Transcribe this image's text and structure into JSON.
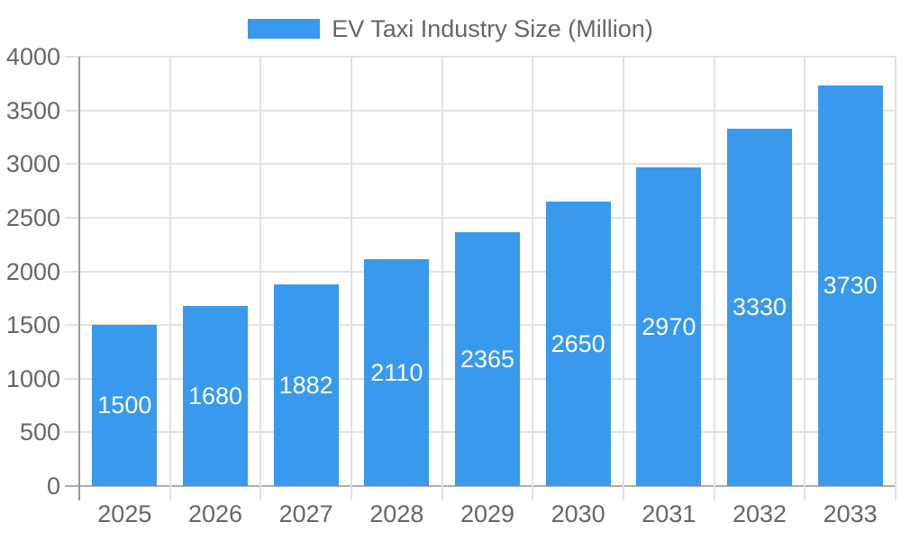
{
  "legend": {
    "label": "EV Taxi Industry Size (Million)"
  },
  "chart_data": {
    "type": "bar",
    "title": "EV Taxi Industry Size (Million)",
    "categories": [
      "2025",
      "2026",
      "2027",
      "2028",
      "2029",
      "2030",
      "2031",
      "2032",
      "2033"
    ],
    "values": [
      1500,
      1680,
      1882,
      2110,
      2365,
      2650,
      2970,
      3330,
      3730
    ],
    "series_name": "EV Taxi Industry Size (Million)",
    "xlabel": "",
    "ylabel": "",
    "ylim": [
      0,
      4000
    ],
    "ytick_step": 500,
    "y_tick_labels": [
      "0",
      "500",
      "1000",
      "1500",
      "2000",
      "2500",
      "3000",
      "3500",
      "4000"
    ],
    "grid": true,
    "legend_position": "top",
    "bar_labels_visible": true,
    "colors": {
      "bar": "#3999EC",
      "bar_label": "#FFFFFF",
      "axis_text": "#666666",
      "gridline": "#E2E2E2",
      "zero_line": "#ADADAD",
      "axis_line": "#999999",
      "background": "#FFFFFF"
    }
  }
}
